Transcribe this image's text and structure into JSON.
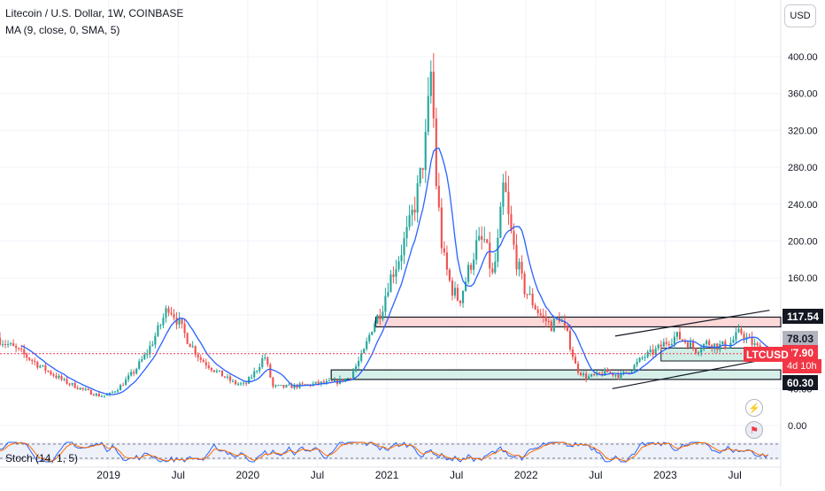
{
  "header": {
    "title": "Litecoin / U.S. Dollar, 1W, COINBASE",
    "indicator": "MA (9, close, 0, SMA, 5)",
    "currency_button": "USD"
  },
  "price_tags": {
    "upper_level": "117.54",
    "ma_value": "78.03",
    "last_price": "77.90",
    "symbol": "LTCUSD",
    "countdown": "4d 10h",
    "lower_level": "60.30"
  },
  "stoch_label": "Stoch (14, 1, 5)",
  "colors": {
    "up": "#26a69a",
    "down": "#ef5350",
    "ma": "#2962ff",
    "resistance_fill": "#fcd9d9",
    "support_fill": "#d7efe9",
    "stoch_k": "#2962ff",
    "stoch_d": "#ff6d00"
  },
  "icons": [
    "lightning-icon",
    "flag-icon"
  ],
  "chart_data": {
    "type": "candlestick",
    "timeframe": "1W",
    "y_ticks": [
      0,
      40,
      80,
      120,
      160,
      200,
      240,
      280,
      320,
      360,
      400
    ],
    "y_tick_labels": [
      "0.00",
      "40.00",
      "",
      "",
      "160.00",
      "200.00",
      "240.00",
      "280.00",
      "320.00",
      "360.00",
      "400.00"
    ],
    "ylim": [
      -10,
      420
    ],
    "x_tick_labels": [
      {
        "label": "2019",
        "t": 2019.0
      },
      {
        "label": "Jul",
        "t": 2019.5
      },
      {
        "label": "2020",
        "t": 2020.0
      },
      {
        "label": "Jul",
        "t": 2020.5
      },
      {
        "label": "2021",
        "t": 2021.0
      },
      {
        "label": "Jul",
        "t": 2021.5
      },
      {
        "label": "2022",
        "t": 2022.0
      },
      {
        "label": "Jul",
        "t": 2022.5
      },
      {
        "label": "2023",
        "t": 2023.0
      },
      {
        "label": "Jul",
        "t": 2023.5
      }
    ],
    "xlim": [
      2018.22,
      2023.83
    ],
    "price_path": [
      [
        2018.22,
        95
      ],
      [
        2018.4,
        78
      ],
      [
        2018.55,
        62
      ],
      [
        2018.7,
        48
      ],
      [
        2018.85,
        38
      ],
      [
        2018.96,
        32
      ],
      [
        2019.02,
        33
      ],
      [
        2019.1,
        42
      ],
      [
        2019.2,
        58
      ],
      [
        2019.3,
        80
      ],
      [
        2019.38,
        105
      ],
      [
        2019.45,
        130
      ],
      [
        2019.5,
        118
      ],
      [
        2019.58,
        95
      ],
      [
        2019.68,
        72
      ],
      [
        2019.8,
        58
      ],
      [
        2019.92,
        46
      ],
      [
        2020.0,
        44
      ],
      [
        2020.08,
        60
      ],
      [
        2020.14,
        76
      ],
      [
        2020.2,
        42
      ],
      [
        2020.3,
        42
      ],
      [
        2020.45,
        44
      ],
      [
        2020.55,
        46
      ],
      [
        2020.65,
        47
      ],
      [
        2020.75,
        52
      ],
      [
        2020.85,
        78
      ],
      [
        2020.92,
        110
      ],
      [
        2020.98,
        125
      ],
      [
        2021.03,
        155
      ],
      [
        2021.1,
        180
      ],
      [
        2021.18,
        215
      ],
      [
        2021.25,
        260
      ],
      [
        2021.3,
        310
      ],
      [
        2021.34,
        390
      ],
      [
        2021.37,
        270
      ],
      [
        2021.42,
        185
      ],
      [
        2021.48,
        150
      ],
      [
        2021.54,
        135
      ],
      [
        2021.6,
        165
      ],
      [
        2021.66,
        195
      ],
      [
        2021.72,
        200
      ],
      [
        2021.78,
        160
      ],
      [
        2021.82,
        200
      ],
      [
        2021.86,
        265
      ],
      [
        2021.9,
        215
      ],
      [
        2021.95,
        180
      ],
      [
        2022.0,
        150
      ],
      [
        2022.06,
        135
      ],
      [
        2022.12,
        120
      ],
      [
        2022.2,
        108
      ],
      [
        2022.26,
        118
      ],
      [
        2022.32,
        96
      ],
      [
        2022.38,
        62
      ],
      [
        2022.45,
        52
      ],
      [
        2022.52,
        54
      ],
      [
        2022.6,
        58
      ],
      [
        2022.7,
        54
      ],
      [
        2022.78,
        62
      ],
      [
        2022.86,
        74
      ],
      [
        2022.94,
        80
      ],
      [
        2023.02,
        90
      ],
      [
        2023.1,
        97
      ],
      [
        2023.18,
        90
      ],
      [
        2023.24,
        82
      ],
      [
        2023.32,
        90
      ],
      [
        2023.4,
        86
      ],
      [
        2023.48,
        88
      ],
      [
        2023.56,
        102
      ],
      [
        2023.62,
        92
      ],
      [
        2023.7,
        82
      ],
      [
        2023.75,
        78
      ]
    ],
    "last_price": 77.9,
    "horizontal_zones": [
      {
        "name": "resistance",
        "from": 2020.92,
        "to": 2023.83,
        "low": 107,
        "high": 117.54
      },
      {
        "name": "support",
        "from": 2020.6,
        "to": 2023.83,
        "low": 50,
        "high": 60.3
      }
    ],
    "trendlines": [
      {
        "from": [
          2022.64,
          97
        ],
        "to": [
          2023.75,
          125
        ]
      },
      {
        "from": [
          2022.62,
          40
        ],
        "to": [
          2023.73,
          72
        ]
      }
    ],
    "highlight_box": {
      "from": 2022.97,
      "to": 2023.83,
      "low": 70,
      "high": 84
    }
  }
}
